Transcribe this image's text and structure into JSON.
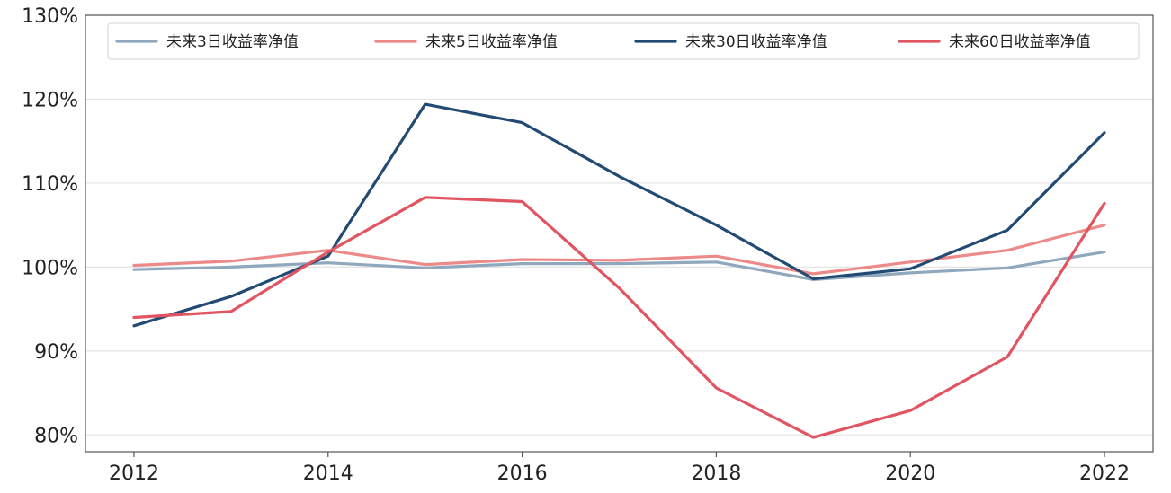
{
  "chart_data": {
    "type": "line",
    "title": "",
    "xlabel": "",
    "ylabel": "",
    "x": [
      2012,
      2013,
      2014,
      2015,
      2016,
      2017,
      2018,
      2019,
      2020,
      2021,
      2022
    ],
    "xlim": [
      2011.5,
      2022.5
    ],
    "ylim": [
      78,
      130
    ],
    "x_ticks": [
      2012,
      2014,
      2016,
      2018,
      2020,
      2022
    ],
    "y_ticks": [
      80,
      90,
      100,
      110,
      120,
      130
    ],
    "y_tick_labels": [
      "80%",
      "90%",
      "100%",
      "110%",
      "120%",
      "130%"
    ],
    "grid": "horizontal",
    "legend_position": "top",
    "series": [
      {
        "name": "未来3日收益率净值",
        "color": "#8fa8bd",
        "values": [
          99.7,
          100.0,
          100.5,
          99.9,
          100.4,
          100.4,
          100.6,
          98.5,
          99.3,
          99.9,
          101.8
        ]
      },
      {
        "name": "未来5日收益率净值",
        "color": "#ec8a8a",
        "values": [
          100.2,
          100.7,
          102.0,
          100.3,
          100.9,
          100.8,
          101.3,
          99.2,
          100.6,
          102.0,
          105.0
        ]
      },
      {
        "name": "未来30日收益率净值",
        "color": "#234a73",
        "values": [
          93.0,
          96.5,
          101.3,
          119.4,
          117.2,
          110.8,
          105.0,
          98.6,
          99.8,
          104.4,
          116.0
        ]
      },
      {
        "name": "未来60日收益率净值",
        "color": "#e05561",
        "values": [
          94.0,
          94.7,
          101.8,
          108.3,
          107.8,
          97.5,
          85.6,
          79.7,
          82.9,
          89.3,
          107.6
        ]
      }
    ]
  }
}
